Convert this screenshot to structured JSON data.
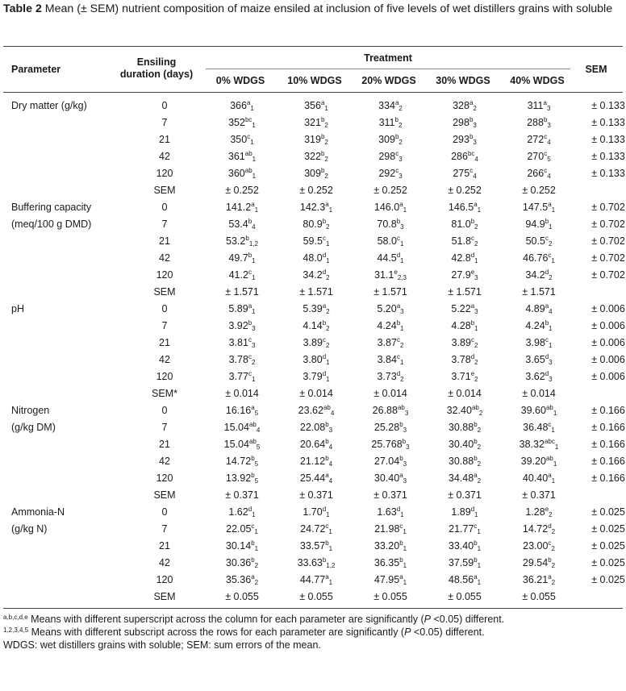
{
  "caption": {
    "label": "Table 2",
    "text": "Mean (± SEM) nutrient composition of maize ensiled at inclusion of five levels of wet distillers grains with soluble"
  },
  "header": {
    "parameter": "Parameter",
    "duration": "Ensiling duration (days)",
    "treatment": "Treatment",
    "sem": "SEM",
    "treatments": [
      "0% WDGS",
      "10% WDGS",
      "20% WDGS",
      "30% WDGS",
      "40% WDGS"
    ]
  },
  "groups": [
    {
      "label": "Dry matter (g/kg)",
      "label2": "",
      "rows": [
        {
          "dur": "0",
          "cells": [
            [
              "366",
              "a",
              "1"
            ],
            [
              "356",
              "a",
              "1"
            ],
            [
              "334",
              "a",
              "2"
            ],
            [
              "328",
              "a",
              "2"
            ],
            [
              "311",
              "a",
              "3"
            ]
          ],
          "sem": "± 0.133"
        },
        {
          "dur": "7",
          "cells": [
            [
              "352",
              "bc",
              "1"
            ],
            [
              "321",
              "b",
              "2"
            ],
            [
              "311",
              "b",
              "2"
            ],
            [
              "298",
              "b",
              "3"
            ],
            [
              "288",
              "b",
              "3"
            ]
          ],
          "sem": "± 0.133"
        },
        {
          "dur": "21",
          "cells": [
            [
              "350",
              "c",
              "1"
            ],
            [
              "319",
              "b",
              "2"
            ],
            [
              "309",
              "b",
              "2"
            ],
            [
              "293",
              "b",
              "3"
            ],
            [
              "272",
              "c",
              "4"
            ]
          ],
          "sem": "± 0.133"
        },
        {
          "dur": "42",
          "cells": [
            [
              "361",
              "ab",
              "1"
            ],
            [
              "322",
              "b",
              "2"
            ],
            [
              "298",
              "c",
              "3"
            ],
            [
              "286",
              "bc",
              "4"
            ],
            [
              "270",
              "c",
              "5"
            ]
          ],
          "sem": "± 0.133"
        },
        {
          "dur": "120",
          "cells": [
            [
              "360",
              "ab",
              "1"
            ],
            [
              "309",
              "b",
              "2"
            ],
            [
              "292",
              "c",
              "3"
            ],
            [
              "275",
              "c",
              "4"
            ],
            [
              "266",
              "c",
              "4"
            ]
          ],
          "sem": "± 0.133"
        }
      ],
      "sem_label": "SEM",
      "sem_row": [
        "± 0.252",
        "± 0.252",
        "± 0.252",
        "± 0.252",
        "± 0.252"
      ]
    },
    {
      "label": "Buffering capacity",
      "label2": "(meq/100 g DMD)",
      "rows": [
        {
          "dur": "0",
          "cells": [
            [
              "141.2",
              "a",
              "1"
            ],
            [
              "142.3",
              "a",
              "1"
            ],
            [
              "146.0",
              "a",
              "1"
            ],
            [
              "146.5",
              "a",
              "1"
            ],
            [
              "147.5",
              "a",
              "1"
            ]
          ],
          "sem": "± 0.702"
        },
        {
          "dur": "7",
          "cells": [
            [
              "53.4",
              "b",
              "4"
            ],
            [
              "80.9",
              "b",
              "2"
            ],
            [
              "70.8",
              "b",
              "3"
            ],
            [
              "81.0",
              "b",
              "2"
            ],
            [
              "94.9",
              "b",
              "1"
            ]
          ],
          "sem": "± 0.702"
        },
        {
          "dur": "21",
          "cells": [
            [
              "53.2",
              "b",
              "1,2"
            ],
            [
              "59.5",
              "c",
              "1"
            ],
            [
              "58.0",
              "c",
              "1"
            ],
            [
              "51.8",
              "c",
              "2"
            ],
            [
              "50.5",
              "c",
              "2"
            ]
          ],
          "sem": "± 0.702"
        },
        {
          "dur": "42",
          "cells": [
            [
              "49.7",
              "b",
              "1"
            ],
            [
              "48.0",
              "d",
              "1"
            ],
            [
              "44.5",
              "d",
              "1"
            ],
            [
              "42.8",
              "d",
              "1"
            ],
            [
              "46.76",
              "c",
              "1"
            ]
          ],
          "sem": "± 0.702"
        },
        {
          "dur": "120",
          "cells": [
            [
              "41.2",
              "c",
              "1"
            ],
            [
              "34.2",
              "d",
              "2"
            ],
            [
              "31.1",
              "e",
              "2,3"
            ],
            [
              "27.9",
              "e",
              "3"
            ],
            [
              "34.2",
              "d",
              "2"
            ]
          ],
          "sem": "± 0.702"
        }
      ],
      "sem_label": "SEM",
      "sem_row": [
        "± 1.571",
        "± 1.571",
        "± 1.571",
        "± 1.571",
        "± 1.571"
      ]
    },
    {
      "label": "pH",
      "label2": "",
      "rows": [
        {
          "dur": "0",
          "cells": [
            [
              "5.89",
              "a",
              "1"
            ],
            [
              "5.39",
              "a",
              "2"
            ],
            [
              "5.20",
              "a",
              "3"
            ],
            [
              "5.22",
              "a",
              "3"
            ],
            [
              "4.89",
              "a",
              "4"
            ]
          ],
          "sem": "± 0.006"
        },
        {
          "dur": "7",
          "cells": [
            [
              "3.92",
              "b",
              "3"
            ],
            [
              "4.14",
              "b",
              "2"
            ],
            [
              "4.24",
              "b",
              "1"
            ],
            [
              "4.28",
              "b",
              "1"
            ],
            [
              "4.24",
              "b",
              "1"
            ]
          ],
          "sem": "± 0.006"
        },
        {
          "dur": "21",
          "cells": [
            [
              "3.81",
              "c",
              "3"
            ],
            [
              "3.89",
              "c",
              "2"
            ],
            [
              "3.87",
              "c",
              "2"
            ],
            [
              "3.89",
              "c",
              "2"
            ],
            [
              "3.98",
              "c",
              "1"
            ]
          ],
          "sem": "± 0.006"
        },
        {
          "dur": "42",
          "cells": [
            [
              "3.78",
              "c",
              "2"
            ],
            [
              "3.80",
              "d",
              "1"
            ],
            [
              "3.84",
              "c",
              "1"
            ],
            [
              "3.78",
              "d",
              "2"
            ],
            [
              "3.65",
              "d",
              "3"
            ]
          ],
          "sem": "± 0.006"
        },
        {
          "dur": "120",
          "cells": [
            [
              "3.77",
              "c",
              "1"
            ],
            [
              "3.79",
              "d",
              "1"
            ],
            [
              "3.73",
              "d",
              "2"
            ],
            [
              "3.71",
              "e",
              "2"
            ],
            [
              "3.62",
              "d",
              "3"
            ]
          ],
          "sem": "± 0.006"
        }
      ],
      "sem_label": "SEM*",
      "sem_row": [
        "± 0.014",
        "± 0.014",
        "± 0.014",
        "± 0.014",
        "± 0.014"
      ]
    },
    {
      "label": "Nitrogen",
      "label2": "(g/kg DM)",
      "rows": [
        {
          "dur": "0",
          "cells": [
            [
              "16.16",
              "a",
              "5"
            ],
            [
              "23.62",
              "ab",
              "4"
            ],
            [
              "26.88",
              "ab",
              "3"
            ],
            [
              "32.40",
              "ab",
              "2"
            ],
            [
              "39.60",
              "ab",
              "1"
            ]
          ],
          "sem": "± 0.166"
        },
        {
          "dur": "7",
          "cells": [
            [
              "15.04",
              "ab",
              "4"
            ],
            [
              "22.08",
              "b",
              "3"
            ],
            [
              "25.28",
              "b",
              "3"
            ],
            [
              "30.88",
              "b",
              "2"
            ],
            [
              "36.48",
              "c",
              "1"
            ]
          ],
          "sem": "± 0.166"
        },
        {
          "dur": "21",
          "cells": [
            [
              "15.04",
              "ab",
              "5"
            ],
            [
              "20.64",
              "b",
              "4"
            ],
            [
              "25.768",
              "b",
              "3"
            ],
            [
              "30.40",
              "b",
              "2"
            ],
            [
              "38.32",
              "abc",
              "1"
            ]
          ],
          "sem": "± 0.166"
        },
        {
          "dur": "42",
          "cells": [
            [
              "14.72",
              "b",
              "5"
            ],
            [
              "21.12",
              "b",
              "4"
            ],
            [
              "27.04",
              "b",
              "3"
            ],
            [
              "30.88",
              "b",
              "2"
            ],
            [
              "39.20",
              "ab",
              "1"
            ]
          ],
          "sem": "± 0.166"
        },
        {
          "dur": "120",
          "cells": [
            [
              "13.92",
              "b",
              "5"
            ],
            [
              "25.44",
              "a",
              "4"
            ],
            [
              "30.40",
              "a",
              "3"
            ],
            [
              "34.48",
              "a",
              "2"
            ],
            [
              "40.40",
              "a",
              "1"
            ]
          ],
          "sem": "± 0.166"
        }
      ],
      "sem_label": "SEM",
      "sem_row": [
        "± 0.371",
        "± 0.371",
        "± 0.371",
        "± 0.371",
        "± 0.371"
      ]
    },
    {
      "label": "Ammonia-N",
      "label2": "(g/kg N)",
      "rows": [
        {
          "dur": "0",
          "cells": [
            [
              "1.62",
              "d",
              "1"
            ],
            [
              "1.70",
              "d",
              "1"
            ],
            [
              "1.63",
              "d",
              "1"
            ],
            [
              "1.89",
              "d",
              "1"
            ],
            [
              "1.28",
              "e",
              "2"
            ]
          ],
          "sem": "± 0.025"
        },
        {
          "dur": "7",
          "cells": [
            [
              "22.05",
              "c",
              "1"
            ],
            [
              "24.72",
              "c",
              "1"
            ],
            [
              "21.98",
              "c",
              "1"
            ],
            [
              "21.77",
              "c",
              "1"
            ],
            [
              "14.72",
              "d",
              "2"
            ]
          ],
          "sem": "± 0.025"
        },
        {
          "dur": "21",
          "cells": [
            [
              "30.14",
              "b",
              "1"
            ],
            [
              "33.57",
              "b",
              "1"
            ],
            [
              "33.20",
              "b",
              "1"
            ],
            [
              "33.40",
              "b",
              "1"
            ],
            [
              "23.00",
              "c",
              "2"
            ]
          ],
          "sem": "± 0.025"
        },
        {
          "dur": "42",
          "cells": [
            [
              "30.36",
              "b",
              "2"
            ],
            [
              "33.63",
              "b",
              "1,2"
            ],
            [
              "36.35",
              "b",
              "1"
            ],
            [
              "37.59",
              "b",
              "1"
            ],
            [
              "29.54",
              "b",
              "2"
            ]
          ],
          "sem": "± 0.025"
        },
        {
          "dur": "120",
          "cells": [
            [
              "35.36",
              "a",
              "2"
            ],
            [
              "44.77",
              "a",
              "1"
            ],
            [
              "47.95",
              "a",
              "1"
            ],
            [
              "48.56",
              "a",
              "1"
            ],
            [
              "36.21",
              "a",
              "2"
            ]
          ],
          "sem": "± 0.025"
        }
      ],
      "sem_label": "SEM",
      "sem_row": [
        "± 0.055",
        "± 0.055",
        "± 0.055",
        "± 0.055",
        "± 0.055"
      ]
    }
  ],
  "footnotes": {
    "sup_marks": "a,b,c,d,e",
    "sup_text": "Means with different superscript across the column for each parameter are significantly (",
    "sup_p": "P",
    "sup_tail": " <0.05) different.",
    "sub_marks": "1,2,3,4,5",
    "sub_text": "Means with different subscript across the rows for each parameter are significantly (",
    "sub_p": "P",
    "sub_tail": " <0.05) different.",
    "abbrev": "WDGS: wet distillers grains with soluble; SEM: sum errors of the mean."
  }
}
